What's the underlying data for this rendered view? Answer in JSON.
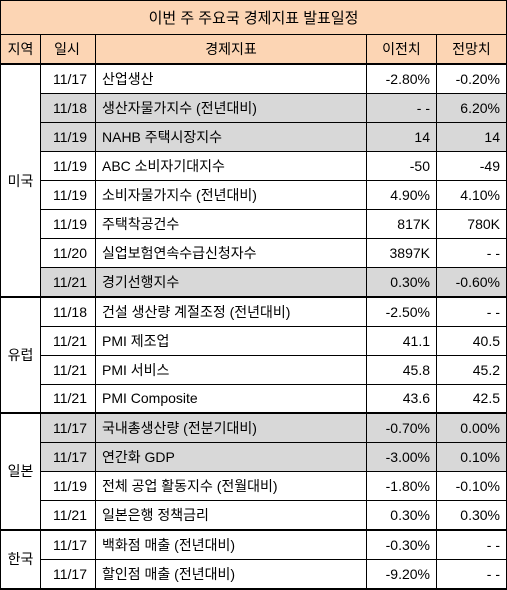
{
  "title": "이번 주 주요국 경제지표 발표일정",
  "headers": {
    "region": "지역",
    "date": "일시",
    "indicator": "경제지표",
    "prev": "이전치",
    "fcst": "전망치"
  },
  "colors": {
    "header_bg": "#fcd5b4",
    "shaded_bg": "#d8d8d8",
    "normal_bg": "#ffffff",
    "border": "#000000"
  },
  "regions": [
    {
      "name": "미국",
      "rows": [
        {
          "date": "11/17",
          "indicator": "산업생산",
          "prev": "-2.80%",
          "fcst": "-0.20%",
          "shaded": false
        },
        {
          "date": "11/18",
          "indicator": "생산자물가지수 (전년대비)",
          "prev": "- -",
          "fcst": "6.20%",
          "shaded": true
        },
        {
          "date": "11/19",
          "indicator": "NAHB 주택시장지수",
          "prev": "14",
          "fcst": "14",
          "shaded": true
        },
        {
          "date": "11/19",
          "indicator": "ABC 소비자기대지수",
          "prev": "-50",
          "fcst": "-49",
          "shaded": false
        },
        {
          "date": "11/19",
          "indicator": "소비자물가지수 (전년대비)",
          "prev": "4.90%",
          "fcst": "4.10%",
          "shaded": false
        },
        {
          "date": "11/19",
          "indicator": "주택착공건수",
          "prev": "817K",
          "fcst": "780K",
          "shaded": false
        },
        {
          "date": "11/20",
          "indicator": "실업보험연속수급신청자수",
          "prev": "3897K",
          "fcst": "- -",
          "shaded": false
        },
        {
          "date": "11/21",
          "indicator": "경기선행지수",
          "prev": "0.30%",
          "fcst": "-0.60%",
          "shaded": true
        }
      ]
    },
    {
      "name": "유럽",
      "rows": [
        {
          "date": "11/18",
          "indicator": "건설 생산량 계절조정 (전년대비)",
          "prev": "-2.50%",
          "fcst": "- -",
          "shaded": false
        },
        {
          "date": "11/21",
          "indicator": "PMI 제조업",
          "prev": "41.1",
          "fcst": "40.5",
          "shaded": false
        },
        {
          "date": "11/21",
          "indicator": "PMI 서비스",
          "prev": "45.8",
          "fcst": "45.2",
          "shaded": false
        },
        {
          "date": "11/21",
          "indicator": "PMI Composite",
          "prev": "43.6",
          "fcst": "42.5",
          "shaded": false
        }
      ]
    },
    {
      "name": "일본",
      "rows": [
        {
          "date": "11/17",
          "indicator": "국내총생산량 (전분기대비)",
          "prev": "-0.70%",
          "fcst": "0.00%",
          "shaded": true
        },
        {
          "date": "11/17",
          "indicator": "연간화 GDP",
          "prev": "-3.00%",
          "fcst": "0.10%",
          "shaded": true
        },
        {
          "date": "11/19",
          "indicator": "전체 공업 활동지수 (전월대비)",
          "prev": "-1.80%",
          "fcst": "-0.10%",
          "shaded": false
        },
        {
          "date": "11/21",
          "indicator": "일본은행 정책금리",
          "prev": "0.30%",
          "fcst": "0.30%",
          "shaded": false
        }
      ]
    },
    {
      "name": "한국",
      "rows": [
        {
          "date": "11/17",
          "indicator": "백화점 매출 (전년대비)",
          "prev": "-0.30%",
          "fcst": "- -",
          "shaded": false
        },
        {
          "date": "11/17",
          "indicator": "할인점 매출 (전년대비)",
          "prev": "-9.20%",
          "fcst": "- -",
          "shaded": false
        }
      ]
    }
  ]
}
